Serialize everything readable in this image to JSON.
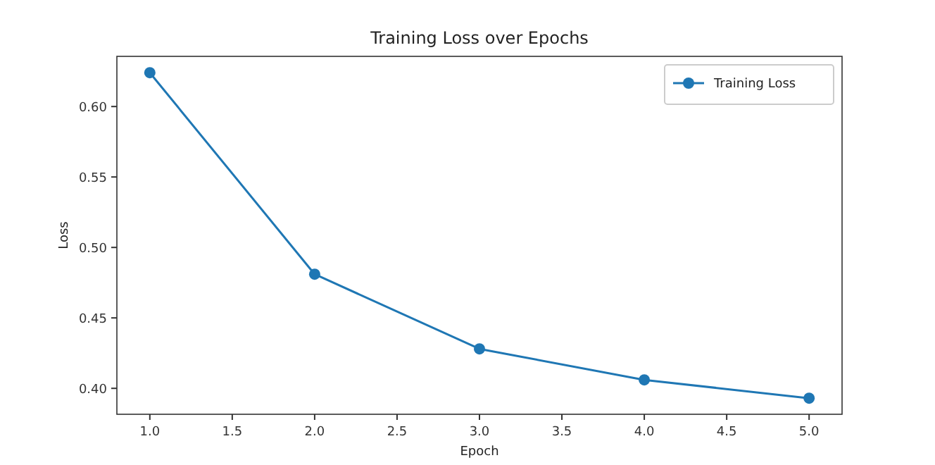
{
  "chart_data": {
    "type": "line",
    "title": "Training Loss over Epochs",
    "xlabel": "Epoch",
    "ylabel": "Loss",
    "x": [
      1,
      2,
      3,
      4,
      5
    ],
    "series": [
      {
        "name": "Training Loss",
        "color": "#1f77b4",
        "values": [
          0.624,
          0.481,
          0.428,
          0.406,
          0.393
        ]
      }
    ],
    "xlim": [
      0.8,
      5.2
    ],
    "xticks": [
      {
        "value": 1,
        "label": "1.0"
      },
      1.5,
      {
        "value": 2,
        "label": "2.0"
      },
      2.5,
      {
        "value": 3,
        "label": "3.0"
      },
      3.5,
      {
        "value": 4,
        "label": "4.0"
      },
      4.5,
      {
        "value": 5,
        "label": "5.0"
      }
    ],
    "ylim": [
      0.3816,
      0.6356
    ],
    "yticks": [
      {
        "value": 0.4,
        "label": "0.40"
      },
      0.45,
      {
        "value": 0.5,
        "label": "0.50"
      },
      0.55,
      {
        "value": 0.6,
        "label": "0.60"
      }
    ],
    "legend": "top right",
    "marker": "circle",
    "line_style": "solid",
    "grid": false
  }
}
